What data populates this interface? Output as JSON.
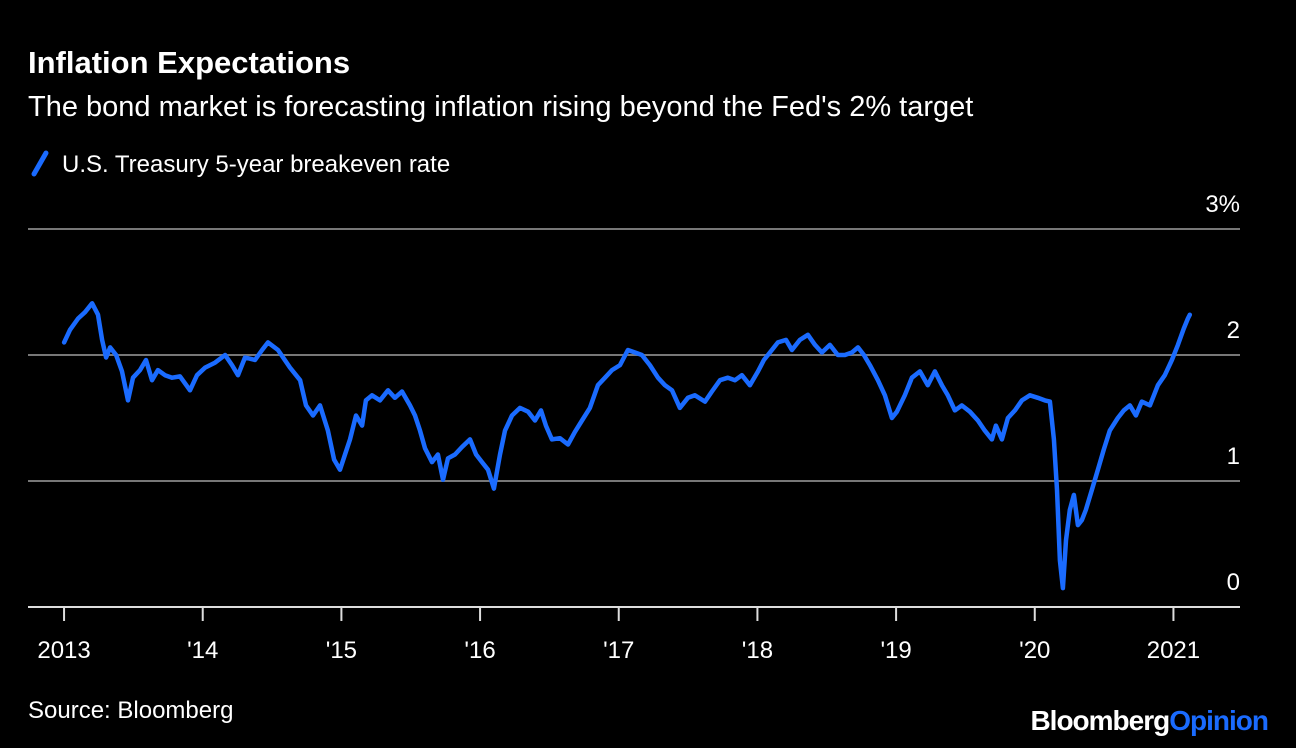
{
  "chart_data": {
    "type": "line",
    "title": "Inflation Expectations",
    "subtitle": "The bond market is forecasting inflation rising beyond the Fed's 2% target",
    "source": "Source: Bloomberg",
    "logo": {
      "brand": "Bloomberg",
      "section": "Opinion"
    },
    "x": [
      2013.0,
      2013.043,
      2013.101,
      2013.151,
      2013.202,
      2013.245,
      2013.274,
      2013.303,
      2013.332,
      2013.375,
      2013.418,
      2013.461,
      2013.497,
      2013.548,
      2013.591,
      2013.634,
      2013.677,
      2013.728,
      2013.779,
      2013.836,
      2013.908,
      2013.959,
      2014.017,
      2014.089,
      2014.161,
      2014.211,
      2014.254,
      2014.305,
      2014.377,
      2014.428,
      2014.471,
      2014.543,
      2014.629,
      2014.702,
      2014.745,
      2014.795,
      2014.846,
      2014.903,
      2014.947,
      2014.99,
      2015.026,
      2015.062,
      2015.105,
      2015.149,
      2015.177,
      2015.221,
      2015.278,
      2015.336,
      2015.386,
      2015.437,
      2015.495,
      2015.531,
      2015.567,
      2015.603,
      2015.653,
      2015.696,
      2015.733,
      2015.769,
      2015.819,
      2015.87,
      2015.927,
      2015.971,
      2016.014,
      2016.057,
      2016.1,
      2016.144,
      2016.18,
      2016.23,
      2016.288,
      2016.346,
      2016.396,
      2016.439,
      2016.475,
      2016.518,
      2016.576,
      2016.634,
      2016.684,
      2016.735,
      2016.792,
      2016.85,
      2016.901,
      2016.951,
      2017.009,
      2017.066,
      2017.117,
      2017.167,
      2017.225,
      2017.283,
      2017.333,
      2017.384,
      2017.441,
      2017.499,
      2017.549,
      2017.622,
      2017.672,
      2017.73,
      2017.787,
      2017.838,
      2017.888,
      2017.946,
      2018.004,
      2018.047,
      2018.09,
      2018.148,
      2018.206,
      2018.249,
      2018.306,
      2018.364,
      2018.415,
      2018.465,
      2018.523,
      2018.58,
      2018.631,
      2018.681,
      2018.725,
      2018.768,
      2018.811,
      2018.869,
      2018.919,
      2018.97,
      2019.006,
      2019.063,
      2019.114,
      2019.172,
      2019.229,
      2019.28,
      2019.33,
      2019.373,
      2019.424,
      2019.474,
      2019.532,
      2019.59,
      2019.64,
      2019.691,
      2019.72,
      2019.763,
      2019.806,
      2019.857,
      2019.907,
      2019.965,
      2020.022,
      2020.073,
      2020.109,
      2020.138,
      2020.16,
      2020.181,
      2020.203,
      2020.225,
      2020.253,
      2020.282,
      2020.311,
      2020.34,
      2020.368,
      2020.412,
      2020.455,
      2020.498,
      2020.541,
      2020.599,
      2020.642,
      2020.686,
      2020.729,
      2020.772,
      2020.83,
      2020.888,
      2020.938,
      2020.989,
      2021.032,
      2021.075,
      2021.104,
      2021.118
    ],
    "series": [
      {
        "name": "U.S. Treasury 5-year breakeven rate",
        "color": "#1a6bff",
        "values": [
          2.1,
          2.2,
          2.29,
          2.34,
          2.41,
          2.32,
          2.12,
          1.98,
          2.06,
          2.0,
          1.87,
          1.64,
          1.82,
          1.88,
          1.96,
          1.8,
          1.88,
          1.84,
          1.82,
          1.83,
          1.72,
          1.84,
          1.9,
          1.94,
          2.0,
          1.92,
          1.84,
          1.98,
          1.96,
          2.04,
          2.1,
          2.04,
          1.9,
          1.8,
          1.6,
          1.52,
          1.6,
          1.4,
          1.17,
          1.09,
          1.21,
          1.33,
          1.52,
          1.44,
          1.64,
          1.68,
          1.64,
          1.72,
          1.66,
          1.71,
          1.6,
          1.52,
          1.4,
          1.26,
          1.15,
          1.21,
          1.01,
          1.18,
          1.21,
          1.27,
          1.33,
          1.21,
          1.15,
          1.09,
          0.94,
          1.21,
          1.4,
          1.52,
          1.58,
          1.55,
          1.48,
          1.56,
          1.44,
          1.33,
          1.34,
          1.29,
          1.39,
          1.48,
          1.58,
          1.76,
          1.82,
          1.88,
          1.92,
          2.04,
          2.02,
          2.0,
          1.92,
          1.82,
          1.76,
          1.72,
          1.58,
          1.66,
          1.68,
          1.63,
          1.71,
          1.8,
          1.82,
          1.8,
          1.84,
          1.76,
          1.87,
          1.96,
          2.02,
          2.1,
          2.12,
          2.04,
          2.12,
          2.16,
          2.08,
          2.02,
          2.08,
          2.0,
          2.0,
          2.02,
          2.06,
          2.0,
          1.92,
          1.8,
          1.68,
          1.5,
          1.55,
          1.68,
          1.82,
          1.87,
          1.76,
          1.87,
          1.76,
          1.68,
          1.56,
          1.6,
          1.55,
          1.48,
          1.4,
          1.33,
          1.44,
          1.33,
          1.5,
          1.56,
          1.64,
          1.68,
          1.66,
          1.64,
          1.63,
          1.33,
          0.93,
          0.37,
          0.15,
          0.53,
          0.77,
          0.89,
          0.65,
          0.69,
          0.77,
          0.93,
          1.09,
          1.25,
          1.4,
          1.5,
          1.56,
          1.6,
          1.52,
          1.63,
          1.6,
          1.76,
          1.84,
          1.96,
          2.08,
          2.21,
          2.29,
          2.32
        ]
      }
    ],
    "xlim": [
      2012.74,
      2021.48
    ],
    "xticks": [
      2013,
      {
        "value": 2014,
        "label": "'14"
      },
      {
        "value": 2015,
        "label": "'15"
      },
      {
        "value": 2016,
        "label": "'16"
      },
      {
        "value": 2017,
        "label": "'17"
      },
      {
        "value": 2018,
        "label": "'18"
      },
      {
        "value": 2019,
        "label": "'19"
      },
      {
        "value": 2020,
        "label": "'20"
      },
      2021
    ],
    "ylim": [
      0,
      3
    ],
    "yticks": [
      0,
      1,
      2,
      {
        "value": 3,
        "label": "3%"
      }
    ],
    "grid": true
  }
}
